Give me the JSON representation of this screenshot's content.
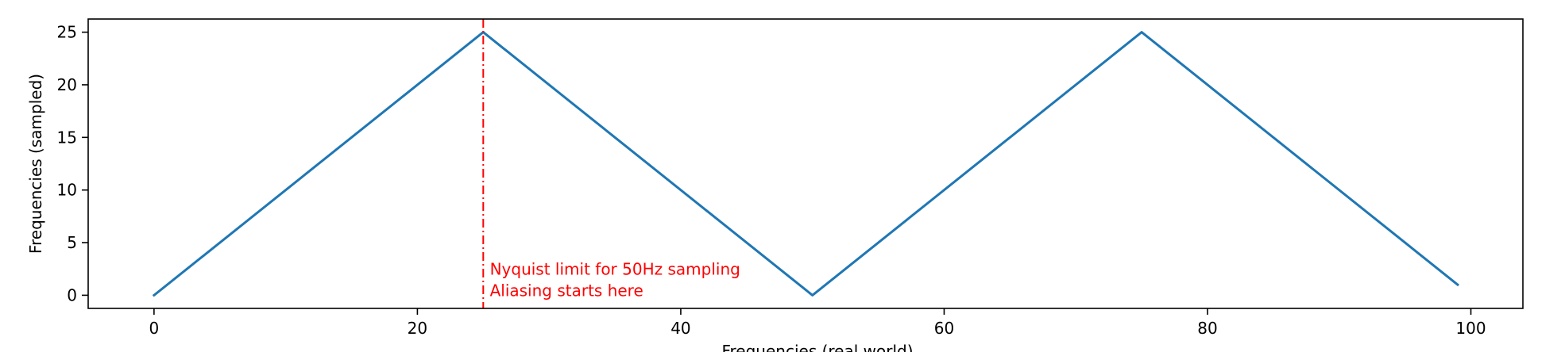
{
  "chart_data": {
    "type": "line",
    "xlabel": "Frequencies (real world)",
    "ylabel": "Frequencies (sampled)",
    "xlim": [
      -5,
      103.95
    ],
    "ylim": [
      -1.25,
      26.25
    ],
    "xticks": [
      0,
      20,
      40,
      60,
      80,
      100
    ],
    "yticks": [
      0,
      5,
      10,
      15,
      20,
      25
    ],
    "grid": false,
    "series": [
      {
        "color": "#1f77b4",
        "x": [
          0,
          25,
          50,
          75,
          99
        ],
        "y": [
          0,
          25,
          0,
          25,
          1
        ]
      }
    ],
    "vline": {
      "x": 25,
      "color": "#ff0000",
      "style": "dash-dot"
    },
    "annotation": {
      "lines": [
        "Nyquist limit for 50Hz sampling",
        "Aliasing starts here"
      ],
      "color": "#ff0000",
      "x": 25.5,
      "y": 0
    }
  }
}
